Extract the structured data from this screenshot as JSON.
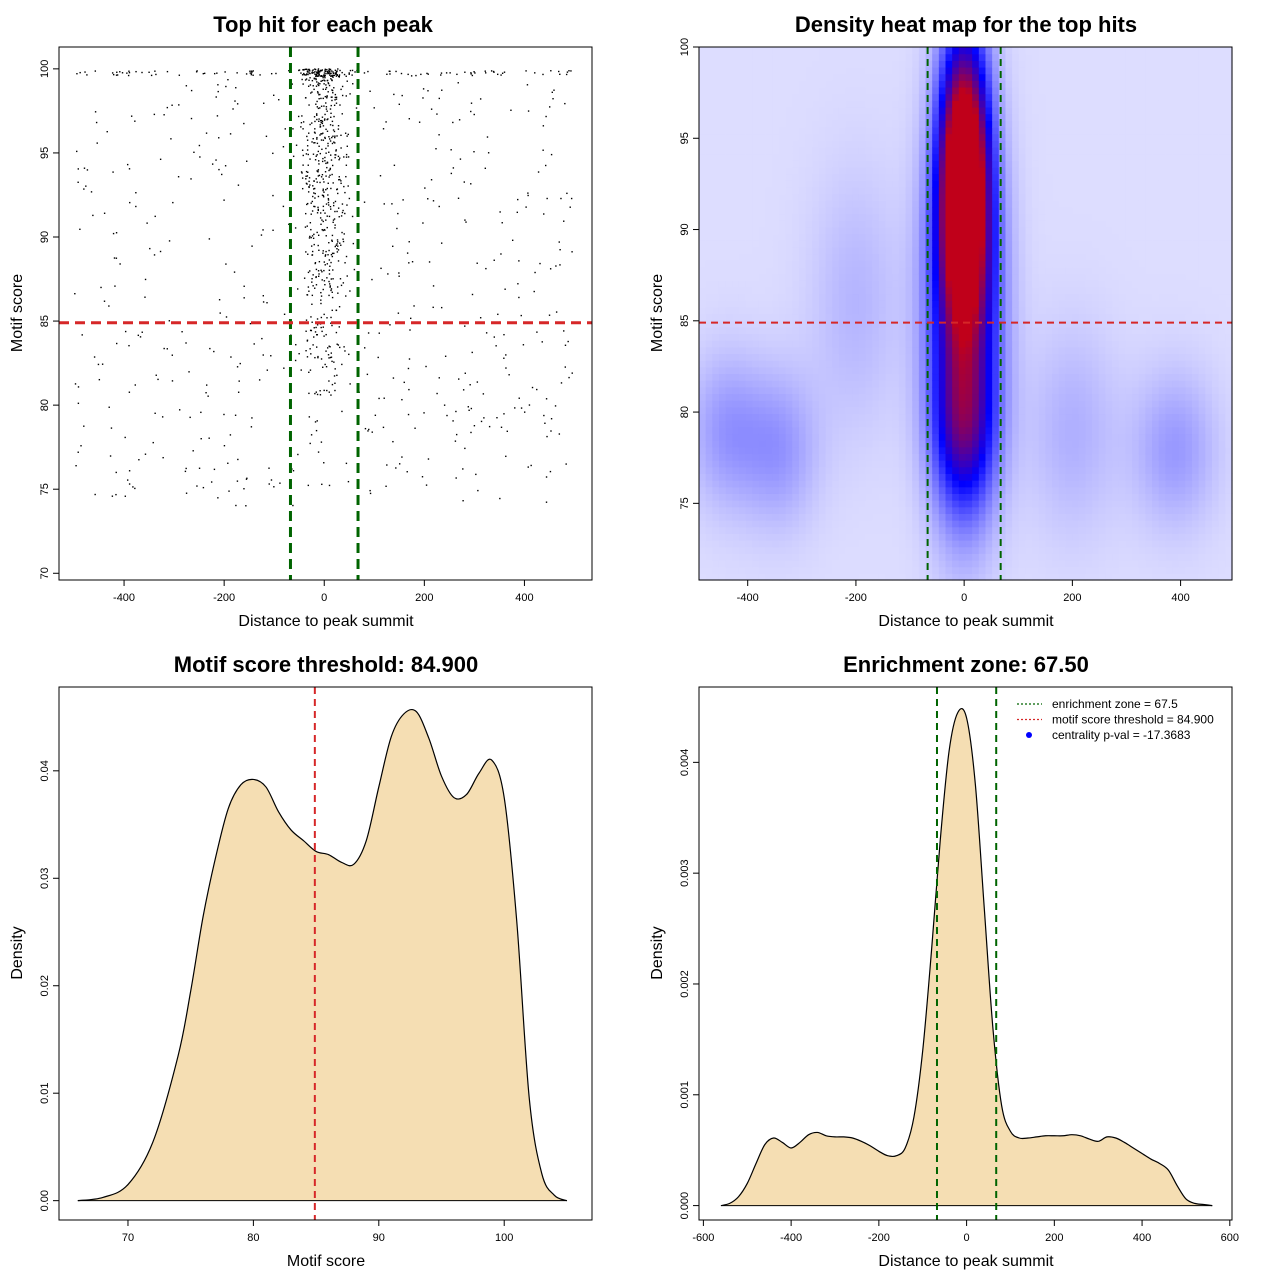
{
  "colors": {
    "frame": "#000000",
    "green_line": "#006400",
    "red_line": "#d62728",
    "density_fill": "#f5deb3",
    "heat_low": "#ffffff",
    "heat_mid": "#0000ff",
    "heat_high": "#c0001a"
  },
  "chart_data": [
    {
      "type": "scatter",
      "title": "Top hit for each peak",
      "xlabel": "Distance to peak summit",
      "ylabel": "Motif score",
      "xlim": [
        -530,
        535
      ],
      "ylim": [
        69.6,
        101.3
      ],
      "xticks": [
        -400,
        -200,
        0,
        200,
        400
      ],
      "yticks": [
        70,
        75,
        80,
        85,
        90,
        95,
        100
      ],
      "vlines": [
        -67.5,
        67.5
      ],
      "hline": 84.9,
      "points_summary": {
        "center_band": [
          -70,
          70
        ],
        "n_center": 640,
        "n_background": 620,
        "x_range": [
          -500,
          500
        ],
        "y_range": [
          71,
          100
        ]
      }
    },
    {
      "type": "heatmap",
      "title": "Density heat map for the top hits",
      "xlabel": "Distance to peak summit",
      "ylabel": "Motif score",
      "xlim": [
        -490,
        495
      ],
      "ylim": [
        70.8,
        100
      ],
      "xticks": [
        -400,
        -200,
        0,
        200,
        400
      ],
      "yticks": [
        75,
        80,
        85,
        90,
        95,
        100
      ],
      "vlines": [
        -67.5,
        67.5
      ],
      "hline": 84.9,
      "hotspots": [
        {
          "x": 0,
          "y": 93,
          "sx": 30,
          "sy": 5,
          "w": 1.0
        },
        {
          "x": 0,
          "y": 86,
          "sx": 45,
          "sy": 7,
          "w": 0.55
        },
        {
          "x": 0,
          "y": 79,
          "sx": 40,
          "sy": 3,
          "w": 0.3
        },
        {
          "x": -440,
          "y": 79,
          "sx": 50,
          "sy": 3,
          "w": 0.12
        },
        {
          "x": -340,
          "y": 78,
          "sx": 50,
          "sy": 3,
          "w": 0.12
        },
        {
          "x": 390,
          "y": 78,
          "sx": 55,
          "sy": 3,
          "w": 0.12
        },
        {
          "x": 200,
          "y": 79,
          "sx": 60,
          "sy": 4,
          "w": 0.08
        },
        {
          "x": -200,
          "y": 86,
          "sx": 60,
          "sy": 5,
          "w": 0.07
        }
      ]
    },
    {
      "type": "area",
      "title": "Motif score threshold: 84.900",
      "xlabel": "Motif score",
      "ylabel": "Density",
      "xlim": [
        64.5,
        107
      ],
      "ylim": [
        -0.0018,
        0.0478
      ],
      "xticks": [
        70,
        80,
        90,
        100
      ],
      "yticks": [
        0.0,
        0.01,
        0.02,
        0.03,
        0.04
      ],
      "ytick_labels": [
        "0.00",
        "0.01",
        "0.02",
        "0.03",
        "0.04"
      ],
      "vline": 84.9,
      "x": [
        66,
        68,
        70,
        72,
        74,
        75,
        76,
        77,
        78,
        79,
        80,
        81,
        82,
        83,
        84,
        85,
        86,
        87,
        88,
        89,
        90,
        91,
        92,
        93,
        94,
        95,
        96,
        97,
        98,
        99,
        100,
        101,
        102,
        103,
        104,
        105
      ],
      "y": [
        0.0,
        0.0003,
        0.0015,
        0.0055,
        0.0135,
        0.0195,
        0.0265,
        0.032,
        0.0365,
        0.0387,
        0.0392,
        0.0385,
        0.0362,
        0.0345,
        0.0335,
        0.0325,
        0.0322,
        0.0315,
        0.0313,
        0.0335,
        0.0385,
        0.0432,
        0.0453,
        0.0455,
        0.043,
        0.0395,
        0.0375,
        0.0378,
        0.0398,
        0.041,
        0.0375,
        0.026,
        0.0095,
        0.0025,
        0.0005,
        0.0
      ]
    },
    {
      "type": "area",
      "title": "Enrichment zone: 67.50",
      "xlabel": "Distance to peak summit",
      "ylabel": "Density",
      "xlim": [
        -610,
        605
      ],
      "ylim": [
        -0.00013,
        0.00468
      ],
      "xticks": [
        -600,
        -400,
        -200,
        0,
        200,
        400,
        600
      ],
      "yticks": [
        0.0,
        0.001,
        0.002,
        0.003,
        0.004
      ],
      "ytick_labels": [
        "0.000",
        "0.001",
        "0.002",
        "0.003",
        "0.004"
      ],
      "vlines": [
        -67.5,
        67.5
      ],
      "x": [
        -560,
        -540,
        -520,
        -500,
        -480,
        -460,
        -440,
        -420,
        -400,
        -380,
        -360,
        -340,
        -320,
        -300,
        -280,
        -260,
        -240,
        -220,
        -200,
        -180,
        -160,
        -140,
        -120,
        -100,
        -80,
        -60,
        -40,
        -20,
        0,
        20,
        40,
        60,
        80,
        100,
        120,
        140,
        160,
        180,
        200,
        220,
        240,
        260,
        280,
        300,
        320,
        340,
        360,
        380,
        400,
        420,
        440,
        460,
        480,
        500,
        520,
        540,
        560
      ],
      "y": [
        0.0,
        2e-05,
        8e-05,
        0.0002,
        0.00038,
        0.00055,
        0.00061,
        0.00057,
        0.00052,
        0.00057,
        0.00064,
        0.00066,
        0.00063,
        0.00062,
        0.00062,
        0.00061,
        0.00058,
        0.00054,
        0.00049,
        0.00045,
        0.00045,
        0.00052,
        0.0008,
        0.0014,
        0.0023,
        0.0033,
        0.0041,
        0.00445,
        0.0044,
        0.0038,
        0.0027,
        0.0016,
        0.0009,
        0.00067,
        0.00061,
        0.00061,
        0.00062,
        0.00063,
        0.00063,
        0.00063,
        0.00064,
        0.00063,
        0.0006,
        0.00058,
        0.00062,
        0.00061,
        0.00057,
        0.00052,
        0.00047,
        0.00042,
        0.00038,
        0.00032,
        0.00018,
        6e-05,
        2e-05,
        1e-05,
        0.0
      ],
      "legend": [
        {
          "label": "enrichment zone = 67.5",
          "style": "dotted",
          "color": "#006400"
        },
        {
          "label": "motif score threshold = 84.900",
          "style": "dotted",
          "color": "#d62728"
        },
        {
          "label": "centrality p-val = -17.3683",
          "style": "point",
          "color": "#0000ff"
        }
      ],
      "legend_position": "top-right"
    }
  ]
}
